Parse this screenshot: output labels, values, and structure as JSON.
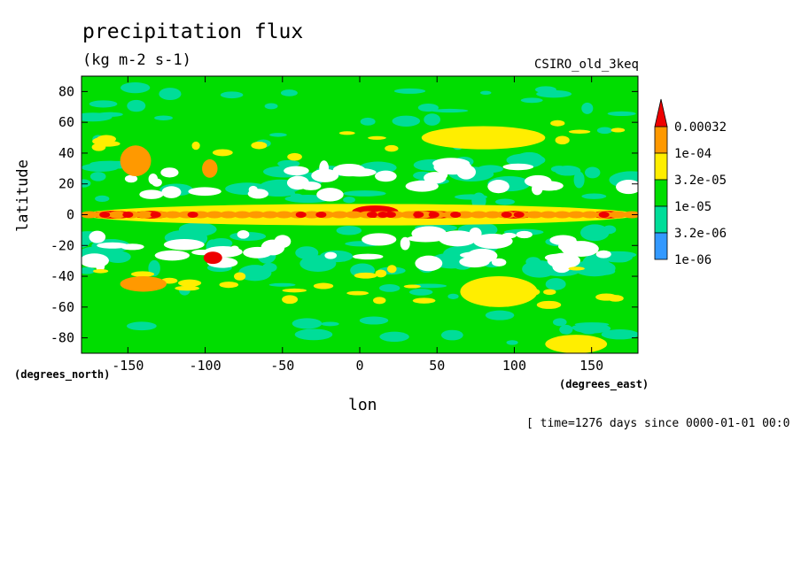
{
  "chart_data": {
    "type": "heatmap",
    "title": "precipitation flux",
    "units": "(kg m-2 s-1)",
    "dataset": "CSIRO_old_3keq",
    "xlabel": "lon",
    "ylabel": "latitude",
    "x_unit_label": "(degrees_east)",
    "y_unit_label": "(degrees_north)",
    "footer": "[ time=1276 days since 0000-01-01 00:0",
    "xlim": [
      -180,
      180
    ],
    "ylim": [
      -90,
      90
    ],
    "x_ticks": [
      -150,
      -100,
      -50,
      0,
      50,
      100,
      150
    ],
    "y_ticks": [
      -80,
      -60,
      -40,
      -20,
      0,
      20,
      40,
      60,
      80
    ],
    "colorbar": {
      "levels": [
        "1e-06",
        "3.2e-06",
        "1e-05",
        "3.2e-05",
        "1e-04",
        "0.00032"
      ],
      "colors": [
        "#ffffff",
        "#3399ff",
        "#00dd99",
        "#00dd00",
        "#ffee00",
        "#ff9900",
        "#ee0000"
      ],
      "extend": "max"
    },
    "features": [
      {
        "lon": 0,
        "lat": 0,
        "width_deg": 360,
        "height_deg": 14,
        "level": 4
      },
      {
        "lon": -160,
        "lat": 0,
        "width_deg": 30,
        "height_deg": 5,
        "level": 6
      },
      {
        "lon": -135,
        "lat": 0,
        "width_deg": 25,
        "height_deg": 5,
        "level": 6
      },
      {
        "lon": 10,
        "lat": 2,
        "width_deg": 30,
        "height_deg": 8,
        "level": 6
      },
      {
        "lon": 45,
        "lat": 0,
        "width_deg": 40,
        "height_deg": 5,
        "level": 6
      },
      {
        "lon": 100,
        "lat": 0,
        "width_deg": 25,
        "height_deg": 5,
        "level": 6
      },
      {
        "lon": 160,
        "lat": 0,
        "width_deg": 20,
        "height_deg": 5,
        "level": 6
      },
      {
        "lon": -145,
        "lat": 35,
        "width_deg": 20,
        "height_deg": 20,
        "level": 5
      },
      {
        "lon": -97,
        "lat": 30,
        "width_deg": 10,
        "height_deg": 12,
        "level": 5
      },
      {
        "lon": -95,
        "lat": -28,
        "width_deg": 12,
        "height_deg": 8,
        "level": 6
      },
      {
        "lon": -140,
        "lat": -45,
        "width_deg": 30,
        "height_deg": 10,
        "level": 5
      },
      {
        "lon": 90,
        "lat": -50,
        "width_deg": 50,
        "height_deg": 20,
        "level": 4
      },
      {
        "lon": 140,
        "lat": -84,
        "width_deg": 40,
        "height_deg": 12,
        "level": 4
      },
      {
        "lon": 80,
        "lat": 50,
        "width_deg": 80,
        "height_deg": 15,
        "level": 4
      }
    ]
  }
}
